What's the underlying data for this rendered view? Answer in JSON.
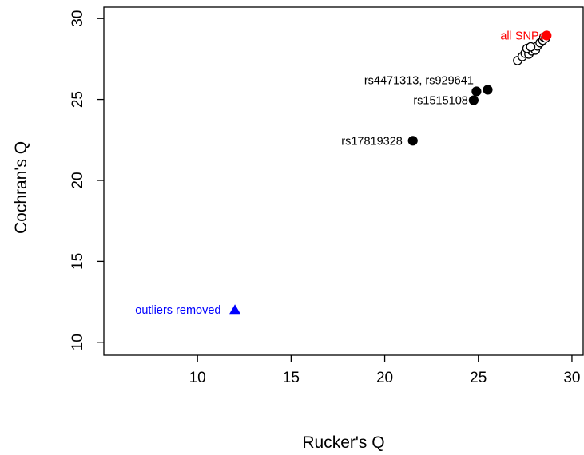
{
  "chart_data": {
    "type": "scatter",
    "title": "",
    "xlabel": "Rucker's Q",
    "ylabel": "Cochran's Q",
    "xlim": [
      5,
      30.6
    ],
    "ylim": [
      9.2,
      30.7
    ],
    "xticks": [
      "10",
      "15",
      "20",
      "25",
      "30"
    ],
    "yticks": [
      "10",
      "15",
      "20",
      "25",
      "30"
    ],
    "grid": false,
    "legend": "none",
    "series": [
      {
        "marker": "open-circle",
        "color": "#000000",
        "points": [
          {
            "x": 27.1,
            "y": 27.4
          },
          {
            "x": 27.35,
            "y": 27.65
          },
          {
            "x": 27.5,
            "y": 27.85
          },
          {
            "x": 27.7,
            "y": 27.8
          },
          {
            "x": 27.85,
            "y": 28.0
          },
          {
            "x": 27.95,
            "y": 28.2
          },
          {
            "x": 28.05,
            "y": 28.05
          },
          {
            "x": 28.15,
            "y": 28.3
          },
          {
            "x": 28.3,
            "y": 28.5
          },
          {
            "x": 28.45,
            "y": 28.65
          },
          {
            "x": 28.5,
            "y": 28.85
          },
          {
            "x": 27.6,
            "y": 28.15
          },
          {
            "x": 27.8,
            "y": 28.25
          },
          {
            "x": 28.6,
            "y": 28.8
          }
        ]
      },
      {
        "marker": "filled-circle",
        "color": "#000000",
        "points": [
          {
            "x": 21.5,
            "y": 22.45
          },
          {
            "x": 24.75,
            "y": 24.95
          },
          {
            "x": 24.9,
            "y": 25.5
          },
          {
            "x": 25.5,
            "y": 25.6
          }
        ]
      },
      {
        "marker": "filled-circle",
        "color": "#ff0000",
        "points": [
          {
            "x": 28.65,
            "y": 28.95
          }
        ]
      },
      {
        "marker": "filled-triangle",
        "color": "#0000ff",
        "points": [
          {
            "x": 12.0,
            "y": 12.0
          }
        ]
      }
    ],
    "annotations": [
      {
        "text": "all SNPs",
        "x": 28.55,
        "y": 28.95,
        "color": "#ff0000",
        "align": "right"
      },
      {
        "text": "rs4471313, rs929641",
        "x": 24.75,
        "y": 26.2,
        "color": "#000000",
        "align": "right"
      },
      {
        "text": "rs1515108",
        "x": 24.45,
        "y": 24.95,
        "color": "#000000",
        "align": "right"
      },
      {
        "text": "rs17819328",
        "x": 20.95,
        "y": 22.45,
        "color": "#000000",
        "align": "right"
      },
      {
        "text": "outliers removed",
        "x": 11.25,
        "y": 12.0,
        "color": "#0000ff",
        "align": "right"
      }
    ]
  }
}
